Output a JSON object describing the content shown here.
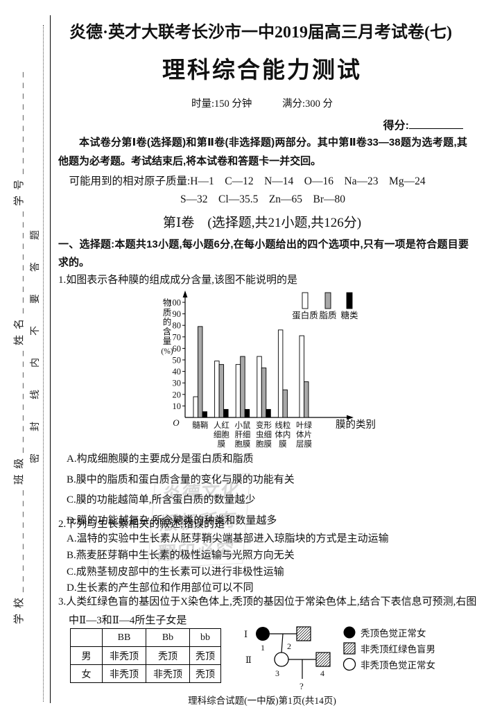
{
  "sidebar": {
    "fields_line": "学校__________班级__________姓名__________学号__________",
    "seal_line": "密封线内不要答题"
  },
  "header": {
    "exam_series": "炎德·英才大联考长沙市一中2019届高三月考试卷(七)",
    "title": "理科综合能力测试",
    "duration": "时量:150 分钟",
    "full_score": "满分:300 分",
    "score_label": "得分:",
    "intro": "本试卷分第Ⅰ卷(选择题)和第Ⅱ卷(非选择题)两部分。其中第Ⅱ卷33—38题为选考题,其他题为必考题。考试结束后,将本试卷和答题卡一并交回。",
    "atomic_mass_line1": "可能用到的相对原子质量:H—1　C—12　N—14　O—16　Na—23　Mg—24",
    "atomic_mass_line2": "S—32　Cl—35.5　Zn—65　Br—80"
  },
  "section1": {
    "heading": "第Ⅰ卷　(选择题,共21小题,共126分)",
    "instruction": "一、选择题:本题共13小题,每小题6分,在每小题给出的四个选项中,只有一项是符合题目要求的。"
  },
  "q1": {
    "stem": "1.如图表示各种膜的组成成分含量,该图不能说明的是",
    "options": [
      "A.构成细胞膜的主要成分是蛋白质和脂质",
      "B.膜中的脂质和蛋白质含量的变化与膜的功能有关",
      "C.膜的功能越简单,所含蛋白质的数量越少",
      "D.膜的功能越复杂,所含糖类的种类和数量越多"
    ]
  },
  "chart_data": {
    "type": "bar",
    "title": "",
    "xlabel": "膜的类别",
    "ylabel": "物质的含量(%)",
    "ylim": [
      0,
      100
    ],
    "ytick_step": 10,
    "grid": false,
    "legend_position": "top-right",
    "origin_label": "O",
    "categories": [
      "髓鞘",
      "人红细胞膜",
      "小鼠肝细胞膜",
      "变形虫细胞膜",
      "线粒体内膜",
      "叶绿体片层膜"
    ],
    "category_lines": [
      [
        "髓鞘"
      ],
      [
        "人红",
        "细胞",
        "膜"
      ],
      [
        "小鼠",
        "肝细",
        "胞膜"
      ],
      [
        "变形",
        "虫细",
        "胞膜"
      ],
      [
        "线粒",
        "体内",
        "膜"
      ],
      [
        "叶绿",
        "体片",
        "层膜"
      ]
    ],
    "series": [
      {
        "name": "蛋白质",
        "color": "#ffffff",
        "values": [
          18,
          49,
          46,
          53,
          76,
          71
        ]
      },
      {
        "name": "脂质",
        "color": "#a8a8a8",
        "values": [
          79,
          46,
          53,
          43,
          24,
          31
        ]
      },
      {
        "name": "糖类",
        "color": "#000000",
        "values": [
          5,
          7,
          7,
          7,
          0,
          0
        ]
      }
    ]
  },
  "q2": {
    "stem": "2.下列与生长素相关的叙述,错误的是",
    "options": [
      "A.温特的实验中生长素从胚芽鞘尖端基部进入琼脂块的方式是主动运输",
      "B.燕麦胚芽鞘中生长素的极性运输与光照方向无关",
      "C.成熟茎韧皮部中的生长素可以进行非极性运输",
      "D.生长素的产生部位和作用部位可以不同"
    ]
  },
  "q3": {
    "stem": "3.人类红绿色盲的基因位于X染色体上,秃顶的基因位于常染色体上,结合下表信息可预测,右图中Ⅱ—3和Ⅱ—4所生子女是",
    "table": {
      "headers": [
        "",
        "BB",
        "Bb",
        "bb"
      ],
      "rows": [
        {
          "label": "男",
          "cells": [
            "非秃顶",
            "秃顶",
            "秃顶"
          ]
        },
        {
          "label": "女",
          "cells": [
            "非秃顶",
            "非秃顶",
            "秃顶"
          ]
        }
      ]
    },
    "pedigree": {
      "gen_labels": [
        "Ⅰ",
        "Ⅱ"
      ],
      "numbers": [
        "1",
        "2",
        "3",
        "4"
      ],
      "unknown": "?"
    },
    "legend": [
      {
        "symbol": "filled-circle",
        "label": "秃顶色觉正常女"
      },
      {
        "symbol": "hatched-square",
        "label": "非秃顶红绿色盲男"
      },
      {
        "symbol": "empty-circle",
        "label": "非秃顶色觉正常女"
      }
    ]
  },
  "watermark": {
    "line1": "炎德文化",
    "line2": "版权所有",
    "line3": "翻印必究"
  },
  "footer": {
    "text": "理科综合试题(一中版)第1页(共14页)"
  }
}
